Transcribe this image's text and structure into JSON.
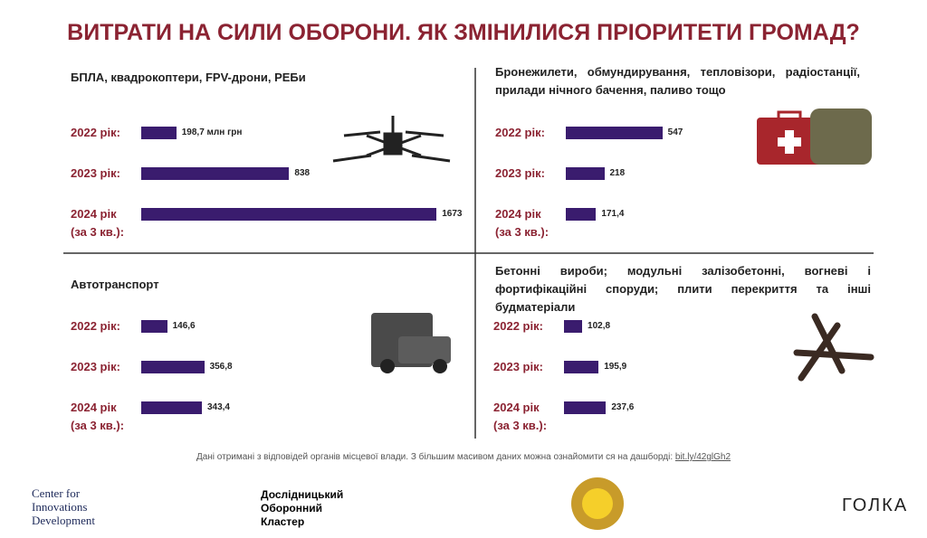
{
  "title": "ВИТРАТИ НА СИЛИ ОБОРОНИ. ЯК ЗМІНИЛИСЯ ПРІОРИТЕТИ ГРОМАД?",
  "chart_data": [
    {
      "type": "bar",
      "title": "БПЛА, квадрокоптери, FPV-дрони, РЕБи",
      "categories": [
        "2022 рік:",
        "2023 рік:",
        "2024 рік (за 3 кв.):"
      ],
      "values": [
        198.7,
        838,
        1673
      ],
      "value_labels": [
        "198,7 млн грн",
        "838",
        "1673"
      ],
      "color": "#3a1c6e"
    },
    {
      "type": "bar",
      "title": "Бронежилети, обмундирування, тепловізори, радіостанції, прилади нічного бачення, паливо тощо",
      "categories": [
        "2022 рік:",
        "2023 рік:",
        "2024 рік (за 3 кв.):"
      ],
      "values": [
        547,
        218,
        171.4
      ],
      "value_labels": [
        "547",
        "218",
        "171,4"
      ],
      "color": "#3a1c6e"
    },
    {
      "type": "bar",
      "title": "Автотранспорт",
      "categories": [
        "2022 рік:",
        "2023 рік:",
        "2024 рік (за 3 кв.):"
      ],
      "values": [
        146.6,
        356.8,
        343.4
      ],
      "value_labels": [
        "146,6",
        "356,8",
        "343,4"
      ],
      "color": "#3a1c6e"
    },
    {
      "type": "bar",
      "title": "Бетонні вироби; модульні залізобетонні, вогневі і фортифікаційні споруди; плити перекриття та інші будматеріали",
      "categories": [
        "2022 рік:",
        "2023 рік:",
        "2024 рік (за 3 кв.):"
      ],
      "values": [
        102.8,
        195.9,
        237.6
      ],
      "value_labels": [
        "102,8",
        "195,9",
        "237,6"
      ],
      "color": "#3a1c6e"
    }
  ],
  "note": "Дані отримані з відповідей органів місцевої влади. З більшим масивом даних можна ознайомити ся на дашборді:",
  "link": "bit.ly/42glGh2",
  "logos": {
    "cid": [
      "Center for",
      "Innovations",
      "Development"
    ],
    "cluster": [
      "Дослідницький",
      "Оборонний",
      "Кластер"
    ],
    "golka": "ГОЛКА"
  }
}
